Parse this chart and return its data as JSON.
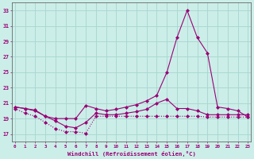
{
  "xlabel": "Windchill (Refroidissement éolien,°C)",
  "background_color": "#cceee8",
  "grid_color": "#aad8d2",
  "line_color": "#990077",
  "x_hours": [
    0,
    1,
    2,
    3,
    4,
    5,
    6,
    7,
    8,
    9,
    10,
    11,
    12,
    13,
    14,
    15,
    16,
    17,
    18,
    19,
    20,
    21,
    22,
    23
  ],
  "line1_top": [
    20.5,
    20.3,
    20.1,
    19.3,
    19.0,
    19.0,
    19.0,
    20.7,
    20.3,
    20.0,
    20.2,
    20.5,
    20.8,
    21.3,
    22.0,
    25.0,
    29.5,
    33.0,
    29.5,
    27.5,
    20.5,
    20.3,
    20.0,
    19.2
  ],
  "line2_mid": [
    20.5,
    20.3,
    20.0,
    19.3,
    18.7,
    18.0,
    17.8,
    18.5,
    19.7,
    19.5,
    19.5,
    19.7,
    19.9,
    20.2,
    21.0,
    21.5,
    20.3,
    20.3,
    20.0,
    19.5,
    19.5,
    19.5,
    19.5,
    19.5
  ],
  "line3_bot": [
    20.3,
    19.7,
    19.3,
    18.5,
    17.7,
    17.3,
    17.3,
    17.1,
    19.3,
    19.3,
    19.3,
    19.3,
    19.3,
    19.3,
    19.3,
    19.3,
    19.3,
    19.3,
    19.3,
    19.2,
    19.2,
    19.2,
    19.2,
    19.2
  ],
  "ylim_min": 16,
  "ylim_max": 34,
  "yticks": [
    17,
    19,
    21,
    23,
    25,
    27,
    29,
    31,
    33
  ],
  "xticks": [
    0,
    1,
    2,
    3,
    4,
    5,
    6,
    7,
    8,
    9,
    10,
    11,
    12,
    13,
    14,
    15,
    16,
    17,
    18,
    19,
    20,
    21,
    22,
    23
  ]
}
